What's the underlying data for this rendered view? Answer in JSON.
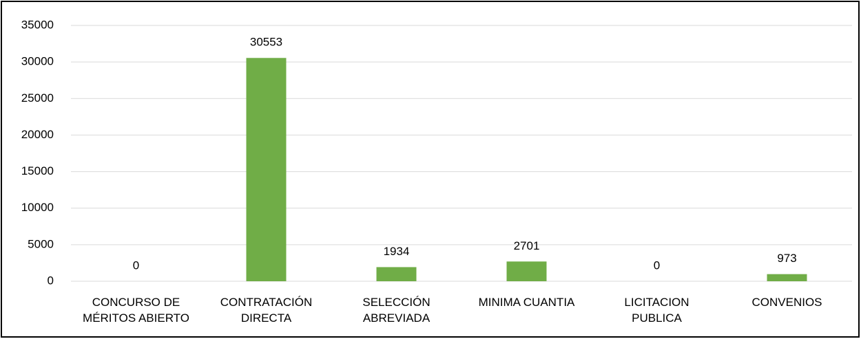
{
  "chart_data": {
    "type": "bar",
    "categories": [
      "CONCURSO DE\nMÉRITOS ABIERTO",
      "CONTRATACIÓN\nDIRECTA",
      "SELECCIÓN\nABREVIADA",
      "MINIMA CUANTIA",
      "LICITACION\nPUBLICA",
      "CONVENIOS"
    ],
    "values": [
      0,
      30553,
      1934,
      2701,
      0,
      973
    ],
    "color": "#70ad47",
    "ylim": [
      0,
      35000
    ],
    "yticks": [
      0,
      5000,
      10000,
      15000,
      20000,
      25000,
      30000,
      35000
    ],
    "grid": true
  }
}
